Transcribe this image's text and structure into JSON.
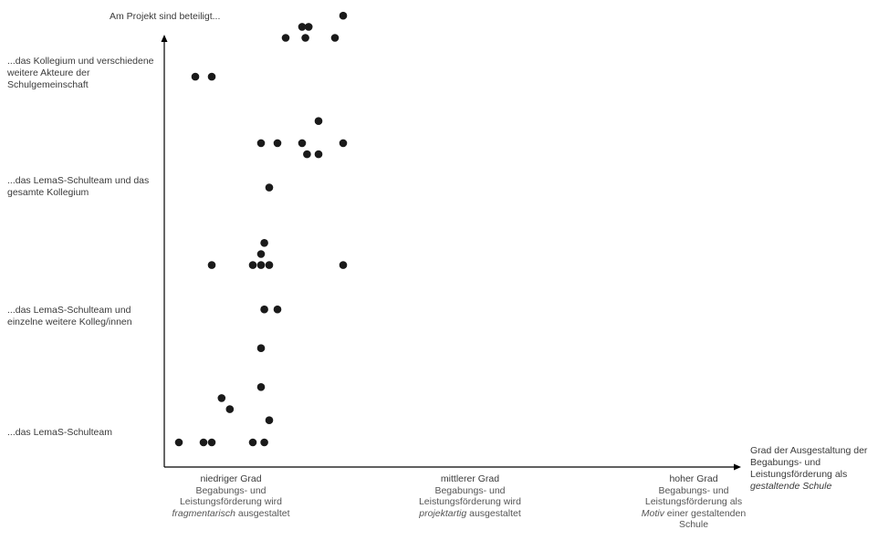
{
  "chart_data": {
    "type": "scatter",
    "ylabel": "Am Projekt sind beteiligt...",
    "xlabel_parts": {
      "before": "Grad der Ausgestaltung der Begabungs- und Leistungsförderung als ",
      "emph": "gestaltende Schule"
    },
    "y_categories": [
      "...das LemaS-Schulteam",
      "...das LemaS-Schulteam und einzelne weitere Kolleg/innen",
      "...das LemaS-Schulteam und das gesamte Kollegium",
      "...das Kollegium und verschiedene weitere Akteure der Schulgemeinschaft"
    ],
    "x_categories": [
      {
        "grade": "niedriger Grad",
        "desc_before": "Begabungs- und Leistungsförderung wird ",
        "desc_emph": "fragmentarisch",
        "desc_after": " ausgestaltet"
      },
      {
        "grade": "mittlerer Grad",
        "desc_before": "Begabungs- und Leistungsförderung wird ",
        "desc_emph": "projektartig",
        "desc_after": " ausgestaltet"
      },
      {
        "grade": "hoher Grad",
        "desc_before": "Begabungs- und Leistungsförderung als ",
        "desc_emph": "Motiv",
        "desc_after": " einer gestaltenden Schule"
      }
    ],
    "x_range": [
      0,
      3
    ],
    "y_range": [
      0,
      4
    ],
    "grid": false,
    "legend": "none",
    "point_color": "#1a1a1a",
    "axis_color": "#000000",
    "points": [
      {
        "x": 0.1,
        "y": 0.0
      },
      {
        "x": 0.25,
        "y": 0.0
      },
      {
        "x": 0.3,
        "y": 0.0
      },
      {
        "x": 0.41,
        "y": 0.3
      },
      {
        "x": 0.36,
        "y": 0.4
      },
      {
        "x": 0.55,
        "y": 0.0
      },
      {
        "x": 0.62,
        "y": 0.0
      },
      {
        "x": 0.65,
        "y": 0.2
      },
      {
        "x": 0.6,
        "y": 0.5
      },
      {
        "x": 0.6,
        "y": 0.85
      },
      {
        "x": 0.62,
        "y": 1.2
      },
      {
        "x": 0.7,
        "y": 1.2
      },
      {
        "x": 0.3,
        "y": 1.6
      },
      {
        "x": 0.55,
        "y": 1.6
      },
      {
        "x": 0.6,
        "y": 1.6
      },
      {
        "x": 0.65,
        "y": 1.6
      },
      {
        "x": 0.6,
        "y": 1.7
      },
      {
        "x": 0.62,
        "y": 1.8
      },
      {
        "x": 1.1,
        "y": 1.6
      },
      {
        "x": 0.65,
        "y": 2.3
      },
      {
        "x": 0.6,
        "y": 2.7
      },
      {
        "x": 0.7,
        "y": 2.7
      },
      {
        "x": 0.85,
        "y": 2.7
      },
      {
        "x": 0.88,
        "y": 2.6
      },
      {
        "x": 0.95,
        "y": 2.6
      },
      {
        "x": 0.95,
        "y": 2.9
      },
      {
        "x": 1.1,
        "y": 2.7
      },
      {
        "x": 0.2,
        "y": 3.3
      },
      {
        "x": 0.3,
        "y": 3.3
      },
      {
        "x": 0.75,
        "y": 3.65
      },
      {
        "x": 0.85,
        "y": 3.75
      },
      {
        "x": 0.87,
        "y": 3.65
      },
      {
        "x": 0.89,
        "y": 3.75
      },
      {
        "x": 1.05,
        "y": 3.65
      },
      {
        "x": 1.1,
        "y": 3.85
      }
    ]
  }
}
